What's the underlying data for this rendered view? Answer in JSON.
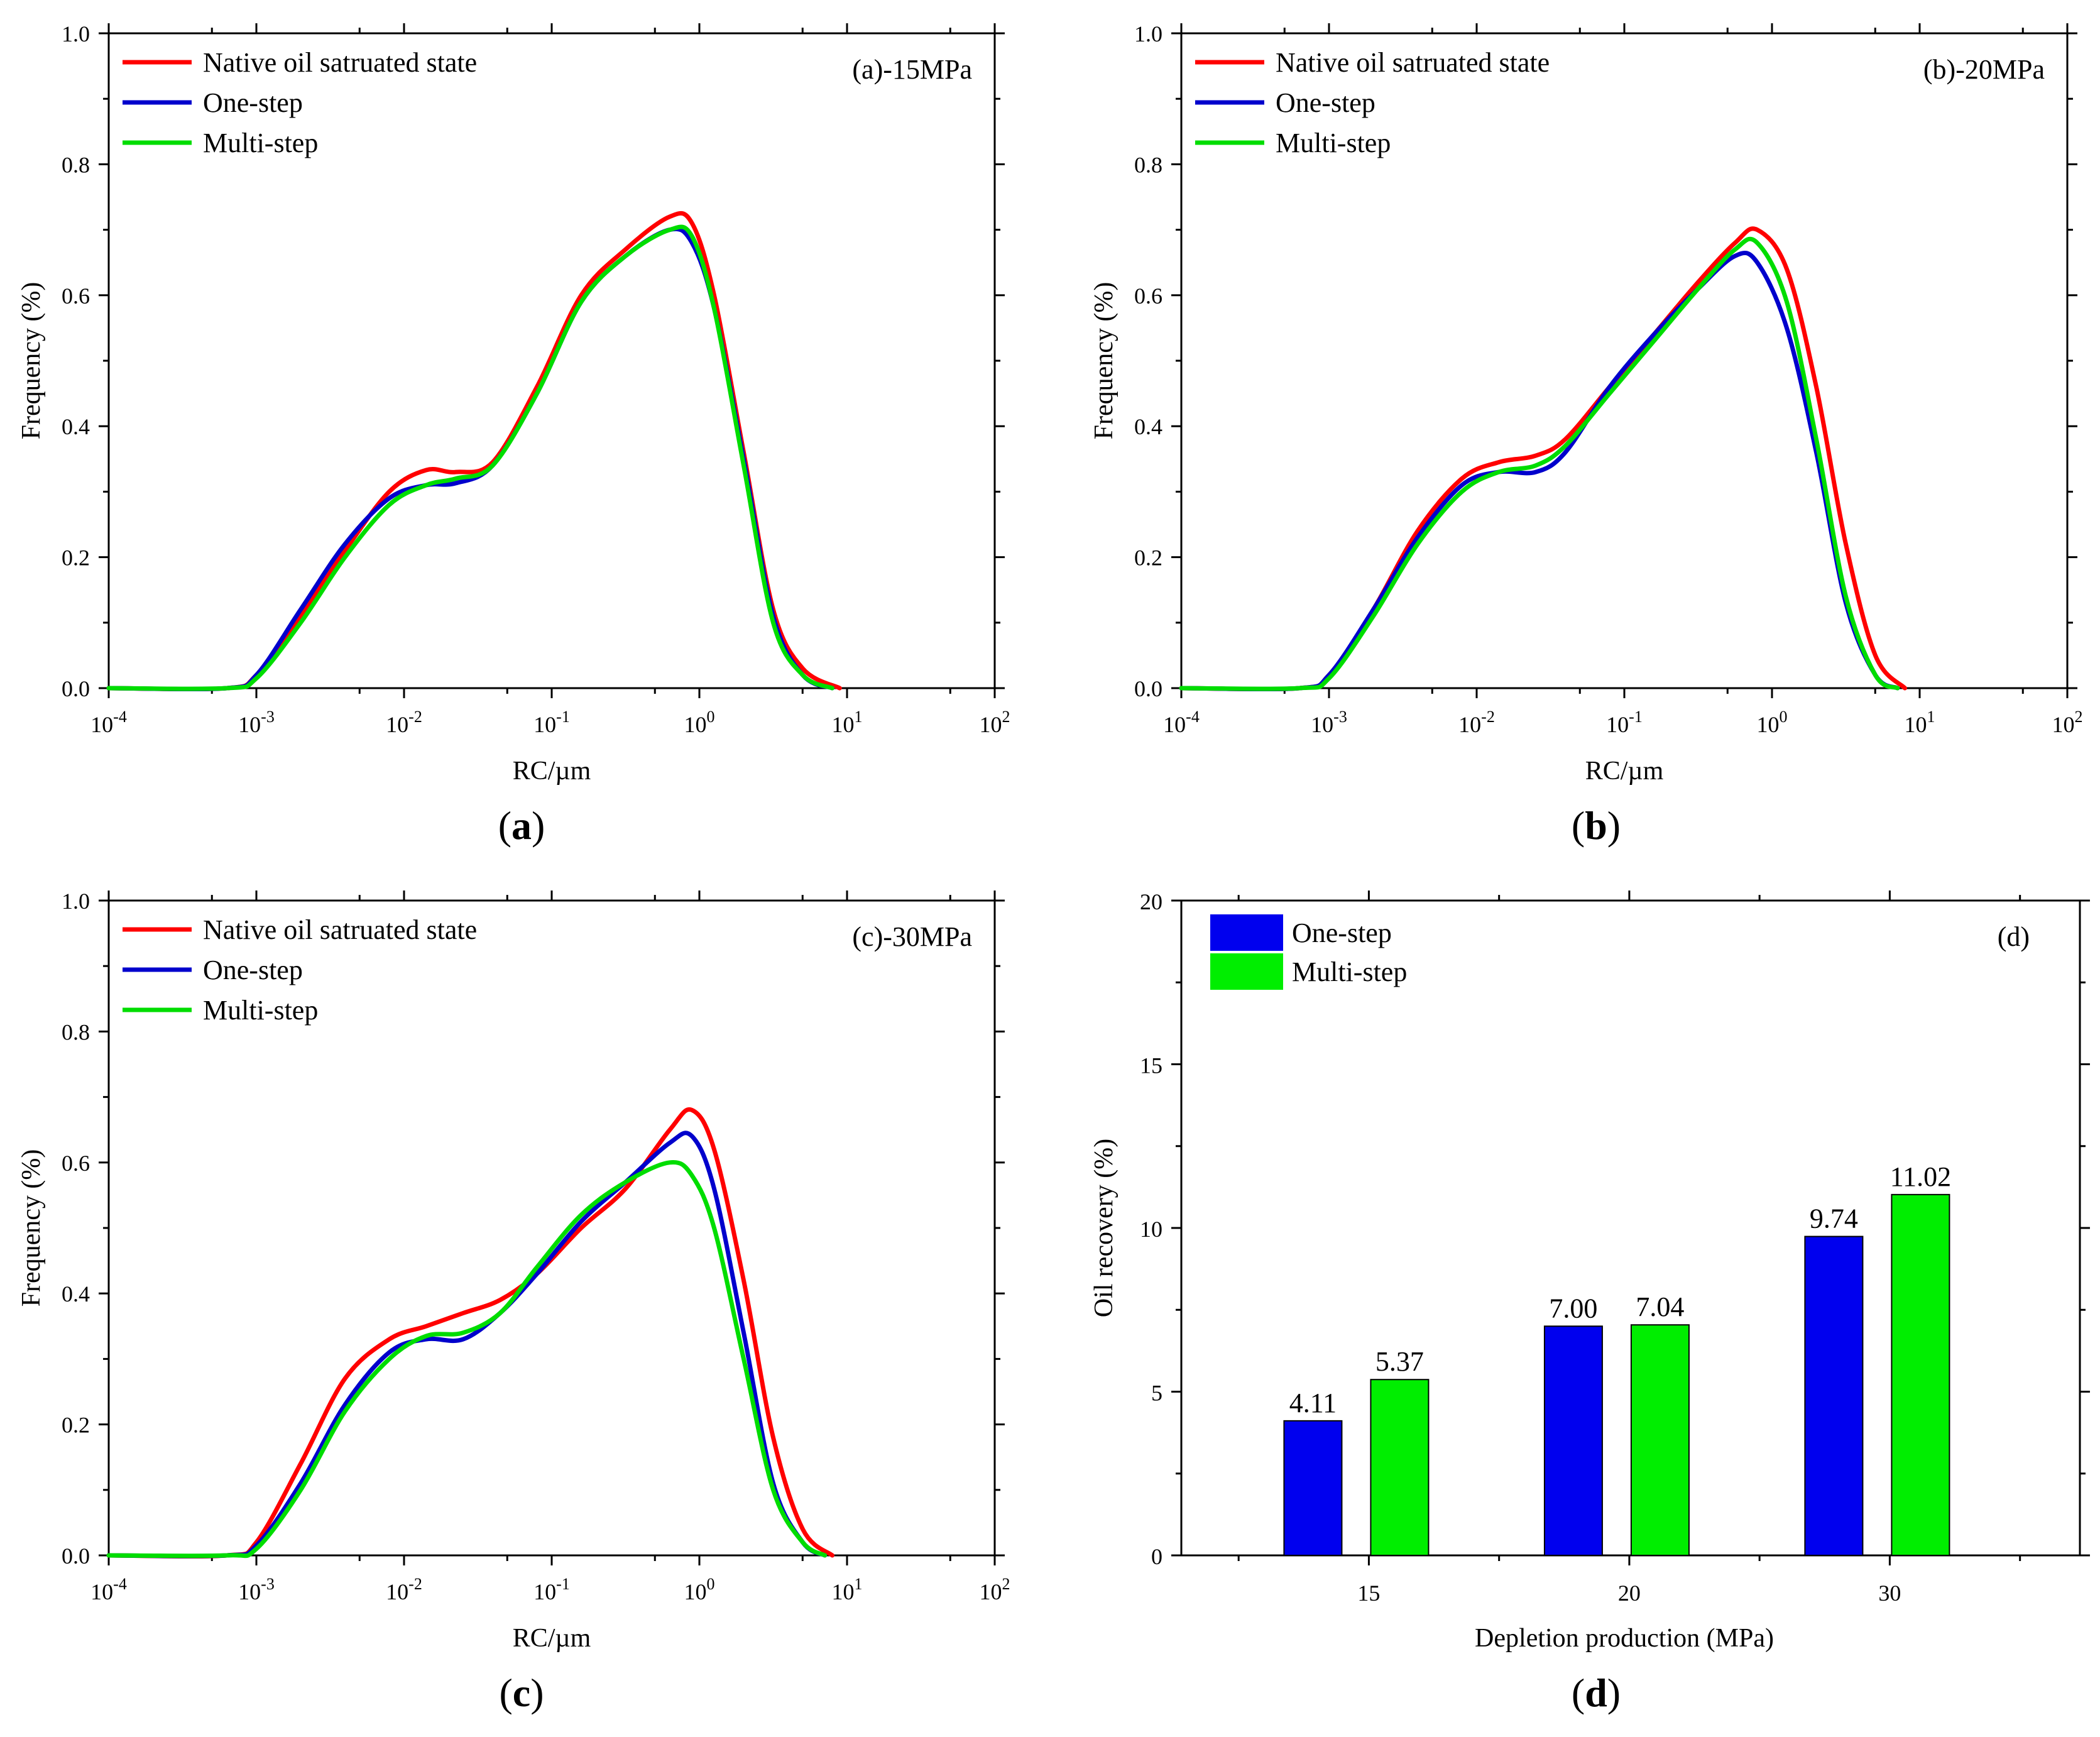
{
  "chart_data": [
    {
      "type": "line",
      "panel": "a",
      "annotation": "(a)-15MPa",
      "caption": {
        "open": "(",
        "letter": "a",
        "close": ")"
      },
      "xlabel": "RC/µm",
      "ylabel": "Frequency (%)",
      "xscale": "log",
      "xlim_exp": [
        -4,
        2
      ],
      "ylim": [
        0,
        1.0
      ],
      "yticks": [
        "0.0",
        "0.2",
        "0.4",
        "0.6",
        "0.8",
        "1.0"
      ],
      "legend_position": "top-left",
      "series": [
        {
          "name": "Native oil satruated state",
          "color": "#ff0000",
          "logx": [
            -4,
            -3.2,
            -3.0,
            -2.7,
            -2.4,
            -2.1,
            -1.85,
            -1.65,
            -1.4,
            -1.1,
            -0.8,
            -0.5,
            -0.2,
            -0.05,
            0.1,
            0.3,
            0.5,
            0.7,
            0.95
          ],
          "y": [
            0,
            0,
            0.02,
            0.11,
            0.21,
            0.3,
            0.333,
            0.33,
            0.345,
            0.46,
            0.6,
            0.67,
            0.72,
            0.71,
            0.6,
            0.36,
            0.12,
            0.03,
            0
          ]
        },
        {
          "name": "One-step",
          "color": "#0000cc",
          "logx": [
            -4,
            -3.2,
            -3.0,
            -2.7,
            -2.4,
            -2.1,
            -1.85,
            -1.65,
            -1.4,
            -1.1,
            -0.8,
            -0.5,
            -0.2,
            -0.05,
            0.1,
            0.3,
            0.5,
            0.7,
            0.9
          ],
          "y": [
            0,
            0,
            0.02,
            0.12,
            0.22,
            0.29,
            0.31,
            0.313,
            0.34,
            0.45,
            0.59,
            0.66,
            0.7,
            0.68,
            0.58,
            0.35,
            0.11,
            0.02,
            0
          ]
        },
        {
          "name": "Multi-step",
          "color": "#00dd00",
          "logx": [
            -4,
            -3.2,
            -3.0,
            -2.7,
            -2.4,
            -2.1,
            -1.85,
            -1.65,
            -1.4,
            -1.1,
            -0.8,
            -0.5,
            -0.2,
            -0.05,
            0.1,
            0.3,
            0.5,
            0.7,
            0.9
          ],
          "y": [
            0,
            0,
            0.015,
            0.1,
            0.2,
            0.28,
            0.31,
            0.32,
            0.34,
            0.45,
            0.59,
            0.66,
            0.7,
            0.69,
            0.58,
            0.34,
            0.1,
            0.02,
            0
          ]
        }
      ]
    },
    {
      "type": "line",
      "panel": "b",
      "annotation": "(b)-20MPa",
      "caption": {
        "open": "(",
        "letter": "b",
        "close": ")"
      },
      "xlabel": "RC/µm",
      "ylabel": "Frequency (%)",
      "xscale": "log",
      "xlim_exp": [
        -4,
        2
      ],
      "ylim": [
        0,
        1.0
      ],
      "yticks": [
        "0.0",
        "0.2",
        "0.4",
        "0.6",
        "0.8",
        "1.0"
      ],
      "legend_position": "top-left",
      "series": [
        {
          "name": "Native oil satruated state",
          "color": "#ff0000",
          "logx": [
            -4,
            -3.2,
            -3.0,
            -2.7,
            -2.4,
            -2.1,
            -1.85,
            -1.6,
            -1.4,
            -1.1,
            -0.8,
            -0.5,
            -0.25,
            -0.1,
            0.1,
            0.3,
            0.5,
            0.7,
            0.9
          ],
          "y": [
            0,
            0,
            0.02,
            0.12,
            0.24,
            0.32,
            0.345,
            0.355,
            0.38,
            0.46,
            0.54,
            0.62,
            0.68,
            0.7,
            0.64,
            0.46,
            0.22,
            0.05,
            0
          ]
        },
        {
          "name": "One-step",
          "color": "#0000cc",
          "logx": [
            -4,
            -3.2,
            -3.0,
            -2.7,
            -2.4,
            -2.1,
            -1.85,
            -1.6,
            -1.4,
            -1.1,
            -0.8,
            -0.5,
            -0.25,
            -0.1,
            0.1,
            0.3,
            0.5,
            0.7,
            0.85
          ],
          "y": [
            0,
            0,
            0.02,
            0.12,
            0.23,
            0.31,
            0.33,
            0.33,
            0.36,
            0.46,
            0.54,
            0.61,
            0.66,
            0.65,
            0.55,
            0.36,
            0.13,
            0.02,
            0
          ]
        },
        {
          "name": "Multi-step",
          "color": "#00dd00",
          "logx": [
            -4,
            -3.2,
            -3.0,
            -2.7,
            -2.4,
            -2.1,
            -1.85,
            -1.6,
            -1.4,
            -1.1,
            -0.8,
            -0.5,
            -0.25,
            -0.1,
            0.1,
            0.3,
            0.5,
            0.7,
            0.85
          ],
          "y": [
            0,
            0,
            0.015,
            0.11,
            0.22,
            0.3,
            0.33,
            0.34,
            0.37,
            0.45,
            0.53,
            0.61,
            0.67,
            0.68,
            0.59,
            0.38,
            0.14,
            0.02,
            0
          ]
        }
      ]
    },
    {
      "type": "line",
      "panel": "c",
      "annotation": "(c)-30MPa",
      "caption": {
        "open": "(",
        "letter": "c",
        "close": ")"
      },
      "xlabel": "RC/µm",
      "ylabel": "Frequency (%)",
      "xscale": "log",
      "xlim_exp": [
        -4,
        2
      ],
      "ylim": [
        0,
        1.0
      ],
      "yticks": [
        "0.0",
        "0.2",
        "0.4",
        "0.6",
        "0.8",
        "1.0"
      ],
      "legend_position": "top-left",
      "series": [
        {
          "name": "Native oil satruated state",
          "color": "#ff0000",
          "logx": [
            -4,
            -3.2,
            -3.0,
            -2.7,
            -2.4,
            -2.1,
            -1.85,
            -1.6,
            -1.35,
            -1.1,
            -0.8,
            -0.5,
            -0.2,
            -0.05,
            0.1,
            0.3,
            0.5,
            0.7,
            0.9
          ],
          "y": [
            0,
            0,
            0.02,
            0.14,
            0.27,
            0.33,
            0.35,
            0.37,
            0.39,
            0.43,
            0.5,
            0.56,
            0.65,
            0.68,
            0.62,
            0.42,
            0.18,
            0.04,
            0
          ]
        },
        {
          "name": "One-step",
          "color": "#0000cc",
          "logx": [
            -4,
            -3.2,
            -3.0,
            -2.7,
            -2.4,
            -2.1,
            -1.85,
            -1.6,
            -1.35,
            -1.1,
            -0.8,
            -0.5,
            -0.2,
            -0.05,
            0.1,
            0.3,
            0.5,
            0.7,
            0.85
          ],
          "y": [
            0,
            0,
            0.015,
            0.11,
            0.23,
            0.31,
            0.33,
            0.33,
            0.37,
            0.43,
            0.51,
            0.57,
            0.63,
            0.64,
            0.56,
            0.34,
            0.11,
            0.02,
            0
          ]
        },
        {
          "name": "Multi-step",
          "color": "#00dd00",
          "logx": [
            -4,
            -3.2,
            -3.0,
            -2.7,
            -2.4,
            -2.1,
            -1.85,
            -1.6,
            -1.35,
            -1.1,
            -0.8,
            -0.5,
            -0.2,
            -0.05,
            0.1,
            0.3,
            0.5,
            0.7,
            0.85
          ],
          "y": [
            0,
            0,
            0.01,
            0.1,
            0.22,
            0.3,
            0.335,
            0.34,
            0.37,
            0.44,
            0.52,
            0.57,
            0.6,
            0.58,
            0.5,
            0.3,
            0.1,
            0.02,
            0
          ]
        }
      ]
    },
    {
      "type": "bar",
      "panel": "d",
      "annotation": "(d)",
      "caption": {
        "open": "(",
        "letter": "d",
        "close": ")"
      },
      "xlabel": "Depletion production (MPa)",
      "ylabel": "Oil recovery (%)",
      "categories": [
        "15",
        "20",
        "30"
      ],
      "ylim": [
        0,
        20
      ],
      "yticks": [
        "0",
        "5",
        "10",
        "15",
        "20"
      ],
      "legend_position": "top-left",
      "series": [
        {
          "name": "One-step",
          "color": "#0000ee",
          "values": [
            4.11,
            7.0,
            9.74
          ],
          "labels": [
            "4.11",
            "7.00",
            "9.74"
          ]
        },
        {
          "name": "Multi-step",
          "color": "#00ee00",
          "values": [
            5.37,
            7.04,
            11.02
          ],
          "labels": [
            "5.37",
            "7.04",
            "11.02"
          ]
        }
      ]
    }
  ]
}
